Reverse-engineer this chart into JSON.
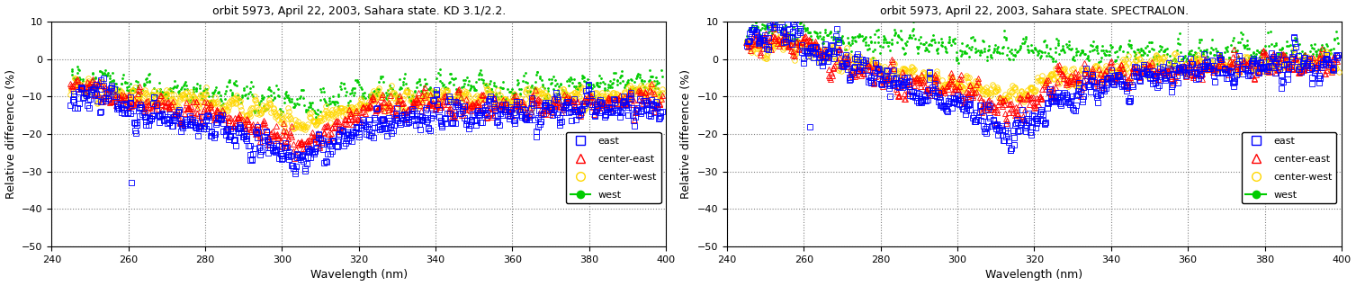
{
  "title1": "orbit 5973, April 22, 2003, Sahara state. KD 3.1/2.2.",
  "title2": "orbit 5973, April 22, 2003, Sahara state. SPECTRALON.",
  "xlabel": "Wavelength (nm)",
  "ylabel": "Relative difference (%)",
  "xlim": [
    240,
    400
  ],
  "ylim1": [
    -50,
    10
  ],
  "ylim2": [
    -50,
    10
  ],
  "yticks1": [
    -50,
    -40,
    -30,
    -20,
    -10,
    0,
    10
  ],
  "yticks2": [
    -50,
    -40,
    -30,
    -20,
    -10,
    0,
    10
  ],
  "xticks": [
    240,
    260,
    280,
    300,
    320,
    340,
    360,
    380,
    400
  ],
  "colors": {
    "east": "#0000FF",
    "center_east": "#FF0000",
    "center_west": "#FFD700",
    "west": "#00CC00"
  },
  "legend_labels": [
    "east",
    "center-east",
    "center-west",
    "west"
  ],
  "background": "#FFFFFF",
  "seed": 42
}
